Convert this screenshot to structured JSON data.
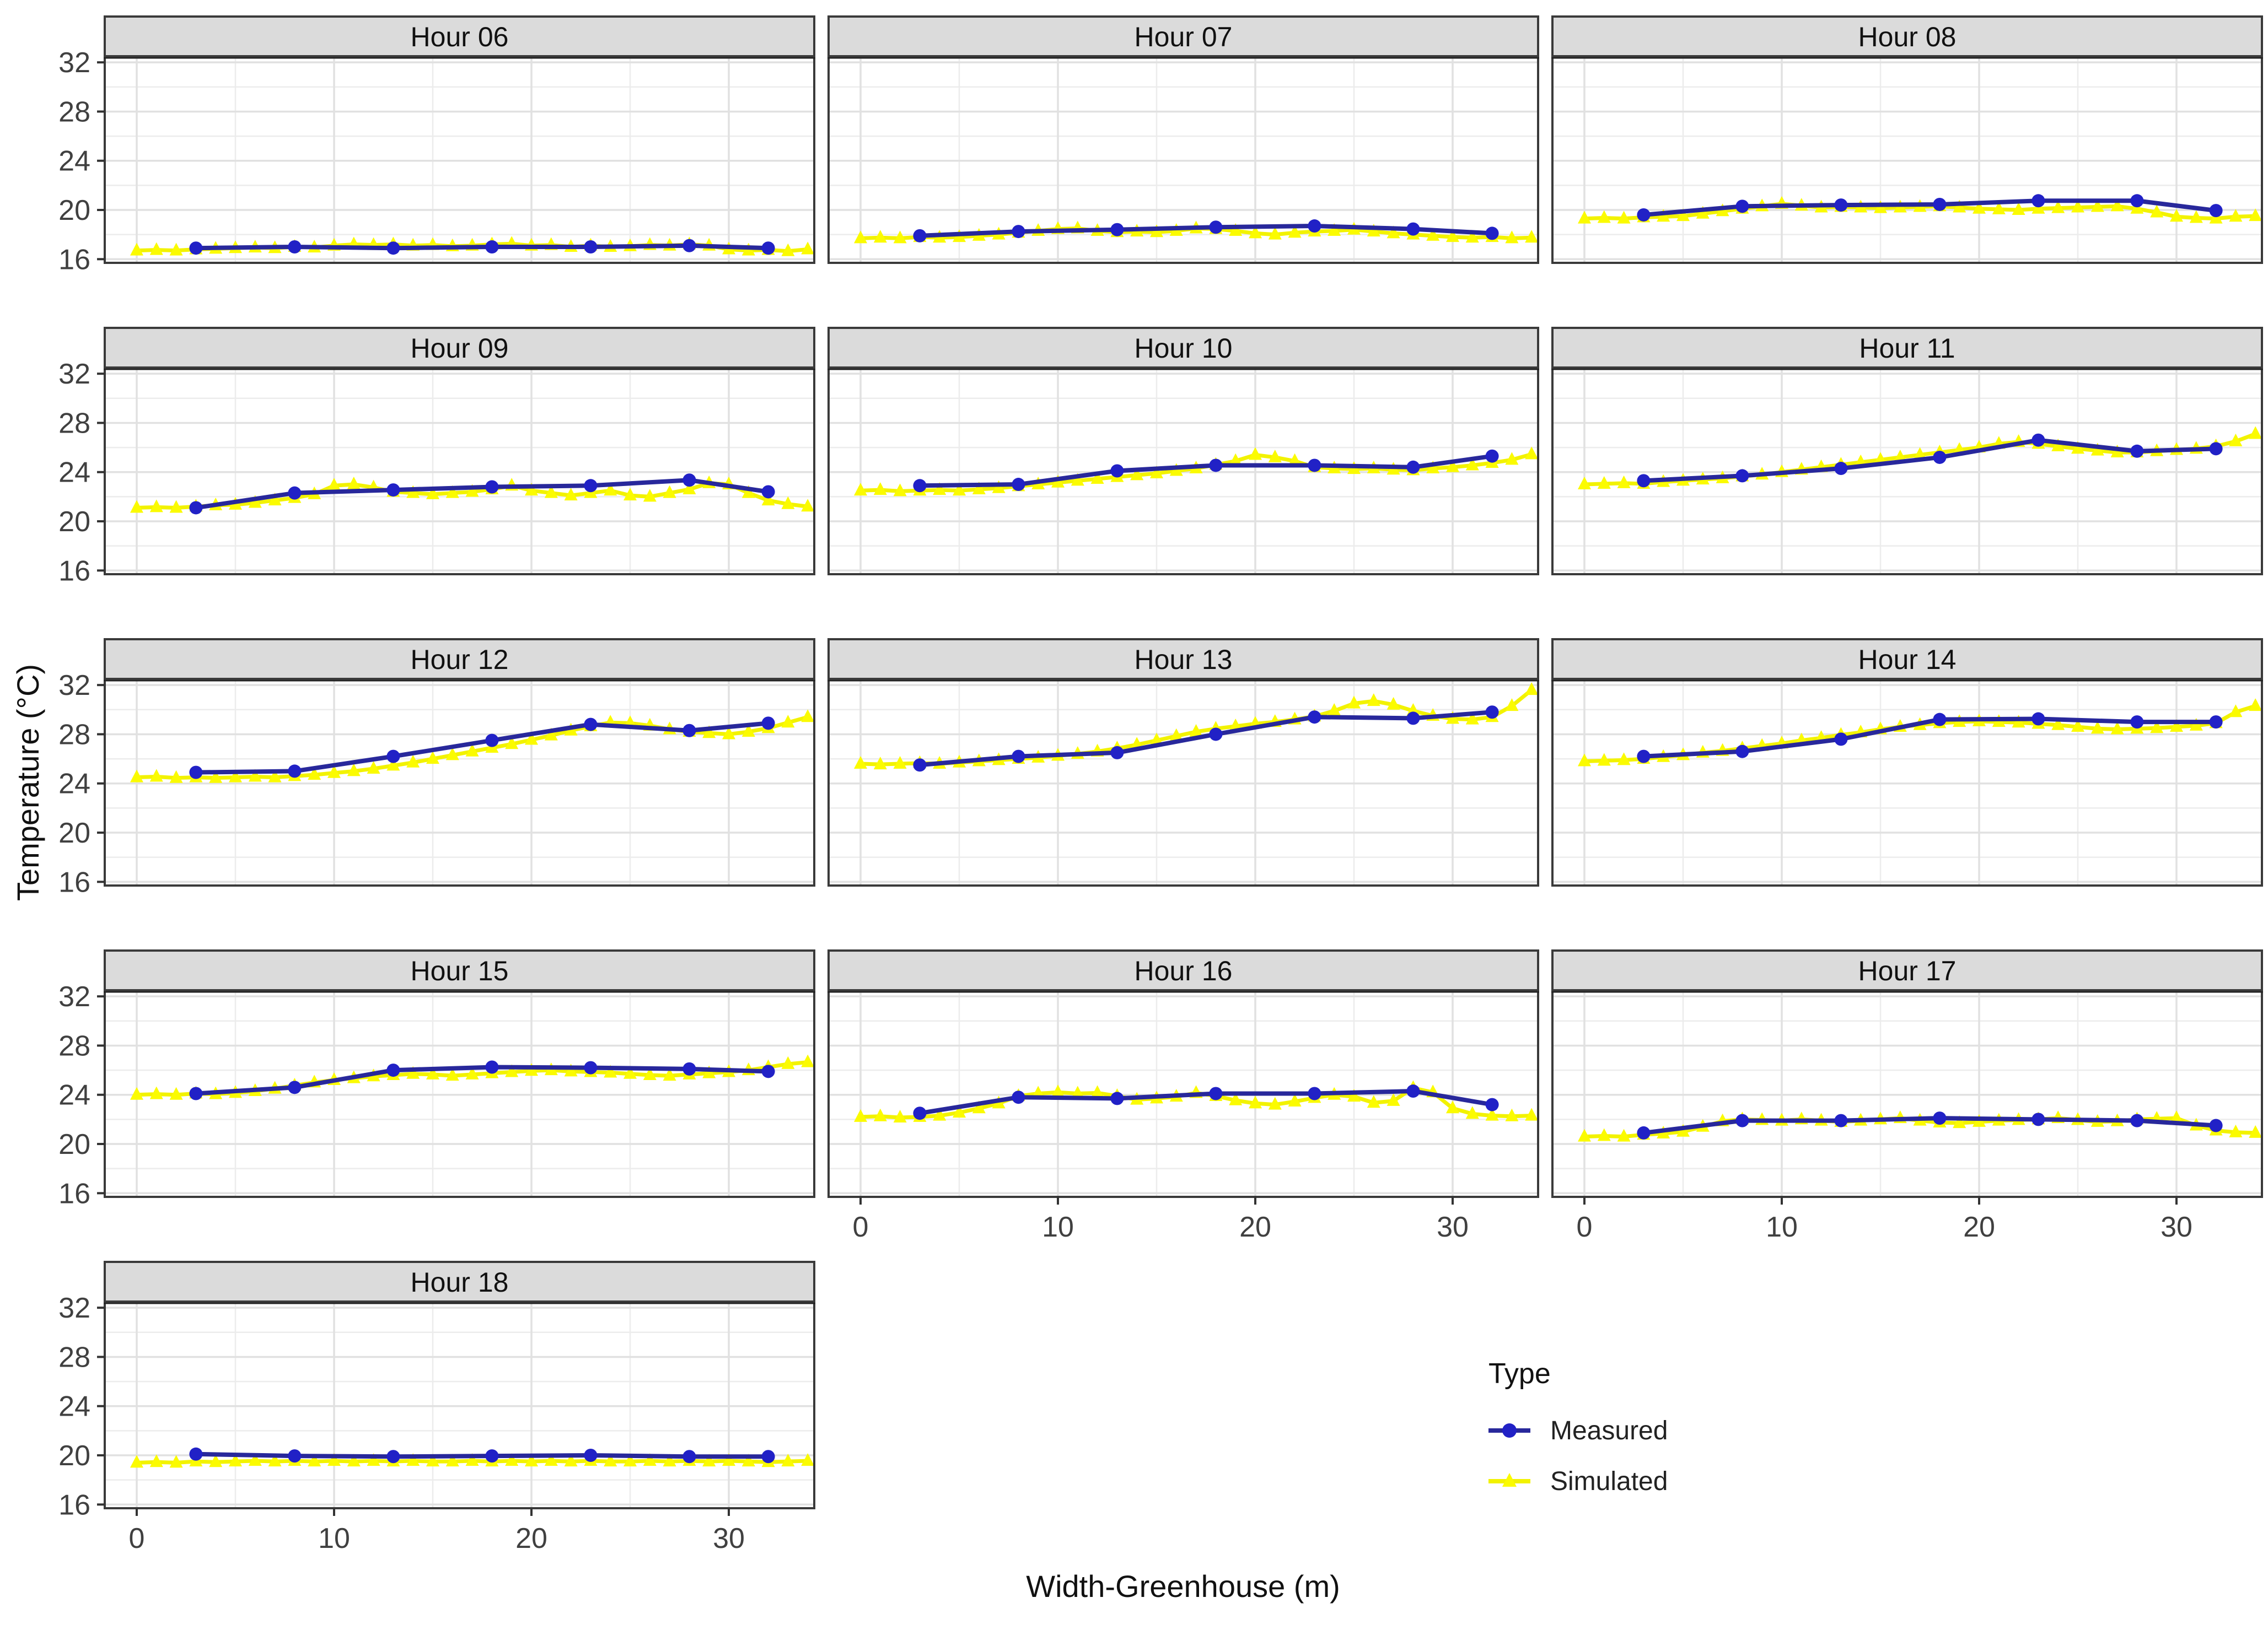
{
  "figure": {
    "kind": "faceted line chart (ggplot style)",
    "xlabel": "Width-Greenhouse (m)",
    "ylabel": "Temperature (°C)",
    "legend_title": "Type",
    "legend_items": [
      "Measured",
      "Simulated"
    ]
  },
  "chart_data": {
    "type": "line",
    "xlabel": "Width-Greenhouse (m)",
    "ylabel": "Temperature (°C)",
    "xlim": [
      -1.62,
      34.35
    ],
    "ylim": [
      15.7,
      32.5
    ],
    "x_ticks": [
      0,
      10,
      20,
      30
    ],
    "x_minor": [
      5,
      15,
      25,
      35
    ],
    "y_ticks": [
      16,
      20,
      24,
      28,
      32
    ],
    "y_minor": [
      18,
      22,
      26,
      30
    ],
    "grid": true,
    "legend": {
      "title": "Type",
      "position": "bottom-right-area",
      "series": [
        {
          "name": "Measured",
          "marker": "circle",
          "color": "#28289B",
          "marker_color": "#2121C6"
        },
        {
          "name": "Simulated",
          "marker": "triangle",
          "color": "#F2F200",
          "marker_color": "#FBFB00"
        }
      ]
    },
    "measured_x": [
      3,
      8,
      13,
      18,
      23,
      28,
      32
    ],
    "simulated_x_start": 0,
    "simulated_x_step": 1,
    "facets": [
      {
        "title": "Hour 06",
        "measured": [
          16.9,
          17.0,
          16.9,
          17.0,
          17.0,
          17.1,
          16.9
        ],
        "simulated": [
          16.7,
          16.75,
          16.7,
          16.8,
          16.85,
          16.9,
          16.95,
          16.9,
          17.0,
          16.95,
          17.1,
          17.2,
          17.15,
          17.2,
          17.1,
          17.15,
          17.05,
          17.1,
          17.2,
          17.25,
          17.1,
          17.15,
          17.0,
          17.1,
          17.0,
          17.05,
          17.15,
          17.1,
          17.2,
          17.1,
          16.8,
          16.7,
          16.75,
          16.65,
          16.8
        ]
      },
      {
        "title": "Hour 07",
        "measured": [
          17.9,
          18.25,
          18.4,
          18.6,
          18.7,
          18.45,
          18.1
        ],
        "simulated": [
          17.7,
          17.75,
          17.7,
          17.8,
          17.75,
          17.8,
          17.9,
          18.0,
          18.15,
          18.3,
          18.45,
          18.5,
          18.3,
          18.2,
          18.25,
          18.2,
          18.3,
          18.5,
          18.45,
          18.3,
          18.1,
          18.0,
          18.15,
          18.25,
          18.3,
          18.4,
          18.25,
          18.1,
          18.0,
          17.9,
          17.8,
          17.75,
          17.8,
          17.7,
          17.75
        ]
      },
      {
        "title": "Hour 08",
        "measured": [
          19.6,
          20.3,
          20.4,
          20.45,
          20.75,
          20.75,
          19.95
        ],
        "simulated": [
          19.3,
          19.35,
          19.3,
          19.4,
          19.45,
          19.5,
          19.7,
          19.9,
          20.1,
          20.3,
          20.5,
          20.35,
          20.2,
          20.25,
          20.2,
          20.15,
          20.2,
          20.25,
          20.3,
          20.2,
          20.1,
          20.05,
          20.0,
          20.1,
          20.15,
          20.2,
          20.25,
          20.3,
          20.1,
          19.8,
          19.45,
          19.35,
          19.3,
          19.45,
          19.5
        ]
      },
      {
        "title": "Hour 09",
        "measured": [
          21.1,
          22.3,
          22.55,
          22.8,
          22.9,
          23.35,
          22.4
        ],
        "simulated": [
          21.1,
          21.15,
          21.1,
          21.2,
          21.3,
          21.35,
          21.5,
          21.7,
          21.9,
          22.2,
          22.9,
          23.0,
          22.75,
          22.4,
          22.3,
          22.2,
          22.3,
          22.4,
          22.6,
          22.9,
          22.5,
          22.3,
          22.1,
          22.3,
          22.5,
          22.1,
          22.0,
          22.3,
          22.6,
          23.1,
          23.0,
          22.3,
          21.7,
          21.4,
          21.2
        ]
      },
      {
        "title": "Hour 10",
        "measured": [
          22.9,
          23.0,
          24.1,
          24.55,
          24.55,
          24.4,
          25.3
        ],
        "simulated": [
          22.5,
          22.55,
          22.45,
          22.5,
          22.55,
          22.5,
          22.6,
          22.7,
          22.85,
          23.0,
          23.15,
          23.3,
          23.45,
          23.6,
          23.75,
          23.9,
          24.1,
          24.3,
          24.6,
          24.9,
          25.4,
          25.2,
          24.9,
          24.4,
          24.3,
          24.25,
          24.3,
          24.2,
          24.15,
          24.3,
          24.4,
          24.55,
          24.75,
          25.0,
          25.45
        ]
      },
      {
        "title": "Hour 11",
        "measured": [
          23.3,
          23.7,
          24.3,
          25.2,
          26.6,
          25.7,
          25.9
        ],
        "simulated": [
          23.0,
          23.05,
          23.1,
          23.05,
          23.2,
          23.3,
          23.4,
          23.5,
          23.65,
          23.8,
          24.0,
          24.2,
          24.4,
          24.6,
          24.8,
          25.0,
          25.2,
          25.4,
          25.6,
          25.8,
          26.0,
          26.3,
          26.45,
          26.3,
          26.1,
          25.9,
          25.75,
          25.6,
          25.6,
          25.7,
          25.8,
          25.9,
          26.1,
          26.5,
          27.1
        ]
      },
      {
        "title": "Hour 12",
        "measured": [
          24.9,
          25.0,
          26.2,
          27.5,
          28.8,
          28.3,
          28.9
        ],
        "simulated": [
          24.5,
          24.55,
          24.45,
          24.5,
          24.45,
          24.5,
          24.55,
          24.5,
          24.6,
          24.7,
          24.85,
          25.0,
          25.2,
          25.45,
          25.7,
          26.0,
          26.3,
          26.6,
          26.9,
          27.2,
          27.55,
          27.9,
          28.3,
          28.65,
          28.95,
          28.9,
          28.7,
          28.4,
          28.2,
          28.1,
          28.0,
          28.2,
          28.5,
          28.95,
          29.4
        ]
      },
      {
        "title": "Hour 13",
        "measured": [
          25.5,
          26.2,
          26.5,
          28.0,
          29.4,
          29.3,
          29.8
        ],
        "simulated": [
          25.6,
          25.55,
          25.6,
          25.65,
          25.6,
          25.7,
          25.8,
          25.9,
          26.0,
          26.1,
          26.25,
          26.4,
          26.6,
          26.85,
          27.15,
          27.5,
          27.85,
          28.2,
          28.45,
          28.65,
          28.85,
          29.0,
          29.2,
          29.45,
          29.9,
          30.5,
          30.7,
          30.4,
          29.9,
          29.5,
          29.25,
          29.2,
          29.4,
          30.3,
          31.6
        ]
      },
      {
        "title": "Hour 14",
        "measured": [
          26.2,
          26.6,
          27.6,
          29.2,
          29.25,
          29.0,
          29.0
        ],
        "simulated": [
          25.8,
          25.85,
          25.9,
          26.0,
          26.15,
          26.3,
          26.5,
          26.65,
          26.85,
          27.05,
          27.25,
          27.5,
          27.7,
          27.95,
          28.15,
          28.4,
          28.6,
          28.75,
          28.9,
          29.0,
          29.05,
          29.0,
          28.95,
          28.85,
          28.75,
          28.6,
          28.45,
          28.4,
          28.45,
          28.5,
          28.6,
          28.7,
          28.9,
          29.8,
          30.3
        ]
      },
      {
        "title": "Hour 15",
        "measured": [
          24.1,
          24.6,
          26.0,
          26.25,
          26.2,
          26.1,
          25.9
        ],
        "simulated": [
          24.0,
          24.05,
          24.0,
          24.1,
          24.05,
          24.15,
          24.3,
          24.5,
          24.75,
          25.0,
          25.2,
          25.35,
          25.5,
          25.6,
          25.7,
          25.65,
          25.55,
          25.65,
          25.75,
          25.85,
          25.95,
          26.0,
          25.9,
          25.85,
          25.8,
          25.7,
          25.6,
          25.55,
          25.65,
          25.75,
          25.85,
          26.0,
          26.25,
          26.5,
          26.65
        ]
      },
      {
        "title": "Hour 16",
        "measured": [
          22.5,
          23.8,
          23.7,
          24.1,
          24.1,
          24.3,
          23.2
        ],
        "simulated": [
          22.2,
          22.25,
          22.15,
          22.2,
          22.3,
          22.55,
          22.9,
          23.3,
          23.9,
          24.1,
          24.2,
          24.1,
          24.15,
          23.9,
          23.6,
          23.7,
          23.85,
          24.15,
          23.9,
          23.55,
          23.3,
          23.2,
          23.45,
          23.75,
          24.0,
          23.85,
          23.35,
          23.5,
          24.55,
          24.2,
          22.9,
          22.45,
          22.3,
          22.25,
          22.3
        ]
      },
      {
        "title": "Hour 17",
        "measured": [
          20.9,
          21.9,
          21.9,
          22.1,
          22.0,
          21.9,
          21.5
        ],
        "simulated": [
          20.6,
          20.65,
          20.6,
          20.75,
          20.85,
          21.0,
          21.4,
          21.85,
          22.0,
          21.95,
          21.9,
          22.0,
          21.9,
          21.8,
          21.9,
          22.0,
          22.1,
          21.9,
          21.75,
          21.7,
          21.8,
          21.9,
          21.95,
          22.0,
          22.1,
          21.95,
          21.8,
          21.85,
          22.0,
          22.05,
          22.1,
          21.5,
          21.1,
          20.95,
          20.9
        ]
      },
      {
        "title": "Hour 18",
        "measured": [
          20.1,
          19.95,
          19.9,
          19.95,
          20.0,
          19.9,
          19.9
        ],
        "simulated": [
          19.4,
          19.45,
          19.4,
          19.5,
          19.45,
          19.5,
          19.55,
          19.5,
          19.55,
          19.5,
          19.55,
          19.5,
          19.55,
          19.5,
          19.55,
          19.5,
          19.5,
          19.55,
          19.5,
          19.55,
          19.5,
          19.55,
          19.5,
          19.55,
          19.5,
          19.5,
          19.55,
          19.5,
          19.55,
          19.5,
          19.55,
          19.5,
          19.45,
          19.5,
          19.55
        ]
      }
    ],
    "style": {
      "strip_fill": "#DBDBDB",
      "strip_text_color": "#111111",
      "panel_border_color": "#3A3A3A",
      "grid_major_color": "#E1E1E1",
      "grid_minor_color": "#ECECEC",
      "tick_label_color": "#404040",
      "axis_label_color": "#111111"
    }
  }
}
